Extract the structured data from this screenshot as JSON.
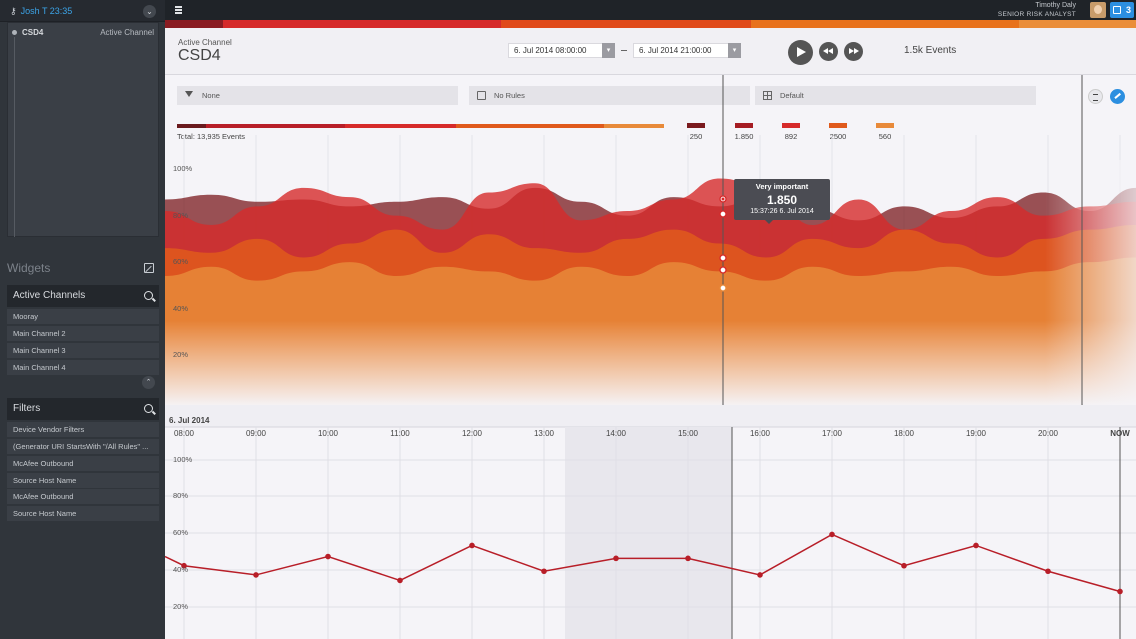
{
  "sidebar": {
    "user_line": "Josh T 23:35",
    "channel": {
      "name": "CSD4",
      "status": "Active Channel"
    },
    "widgets_title": "Widgets",
    "active_channels": {
      "title": "Active Channels",
      "items": [
        "Mooray",
        "Main Channel 2",
        "Main Channel 3",
        "Main Channel 4"
      ]
    },
    "filters": {
      "title": "Filters",
      "items": [
        "Device Vendor Filters",
        "(Generator URI StartsWith \"/All Rules\" ...",
        "McAfee Outbound",
        "Source Host Name",
        "McAfee Outbound",
        "Source Host Name"
      ]
    }
  },
  "topbar": {
    "user_name": "Timothy Daly",
    "user_role": "SENIOR RISK ANALYST",
    "notification_count": "3"
  },
  "header": {
    "label": "Active Channel",
    "channel_name": "CSD4",
    "start_datetime": "6. Jul 2014  08:00:00",
    "end_datetime": "6. Jul 2014  21:00:00",
    "events": "1.5k Events"
  },
  "toolbar": {
    "filter": "None",
    "rules": "No Rules",
    "layout": "Default"
  },
  "summary": {
    "total": "Total: 13,935 Events",
    "legend": [
      {
        "value": "250",
        "color": "#7a1a1e"
      },
      {
        "value": "1.850",
        "color": "#a51c23"
      },
      {
        "value": "892",
        "color": "#d62a2a"
      },
      {
        "value": "2500",
        "color": "#e05a1c"
      },
      {
        "value": "560",
        "color": "#e88a3a"
      }
    ]
  },
  "tooltip": {
    "title": "Very important",
    "value": "1.850",
    "time": "15:37:26  6. Jul 2014"
  },
  "colors": {
    "accent": "#2c8fe0",
    "series_line": "#b81e28"
  },
  "chart_data": [
    {
      "type": "area",
      "ylim": [
        0,
        100
      ],
      "y_ticks": [
        "100%",
        "80%",
        "60%",
        "40%",
        "20%"
      ],
      "series": [
        {
          "name": "",
          "color": "#7a1a1e",
          "values": [
            83,
            85,
            82,
            83,
            80,
            82,
            84,
            79,
            88,
            82,
            76,
            84,
            80,
            85,
            79,
            74,
            80,
            75,
            80,
            86,
            78,
            88
          ]
        },
        {
          "name": "",
          "color": "#d62a2a",
          "values": [
            78,
            72,
            80,
            88,
            84,
            76,
            70,
            86,
            90,
            74,
            78,
            83,
            92,
            88,
            72,
            83,
            70,
            78,
            84,
            76,
            80,
            82
          ]
        },
        {
          "name": "",
          "color": "#e05a1c",
          "values": [
            62,
            60,
            66,
            58,
            64,
            70,
            60,
            68,
            62,
            60,
            66,
            70,
            64,
            58,
            66,
            62,
            70,
            64,
            58,
            66,
            70,
            72
          ]
        },
        {
          "name": "",
          "color": "#e88a3a",
          "values": [
            50,
            54,
            48,
            52,
            56,
            50,
            54,
            52,
            48,
            54,
            50,
            56,
            52,
            48,
            54,
            50,
            52,
            54,
            50,
            52,
            56,
            58
          ]
        }
      ]
    },
    {
      "type": "line",
      "date_label": "6. Jul 2014",
      "x": [
        "08:00",
        "09:00",
        "10:00",
        "11:00",
        "12:00",
        "13:00",
        "14:00",
        "15:00",
        "16:00",
        "17:00",
        "18:00",
        "19:00",
        "20:00",
        "NOW"
      ],
      "values": [
        42,
        37,
        47,
        34,
        53,
        39,
        46,
        46,
        37,
        59,
        42,
        53,
        39,
        28
      ],
      "ylim": [
        0,
        100
      ],
      "y_ticks": [
        "100%",
        "80%",
        "60%",
        "40%",
        "20%"
      ]
    }
  ]
}
